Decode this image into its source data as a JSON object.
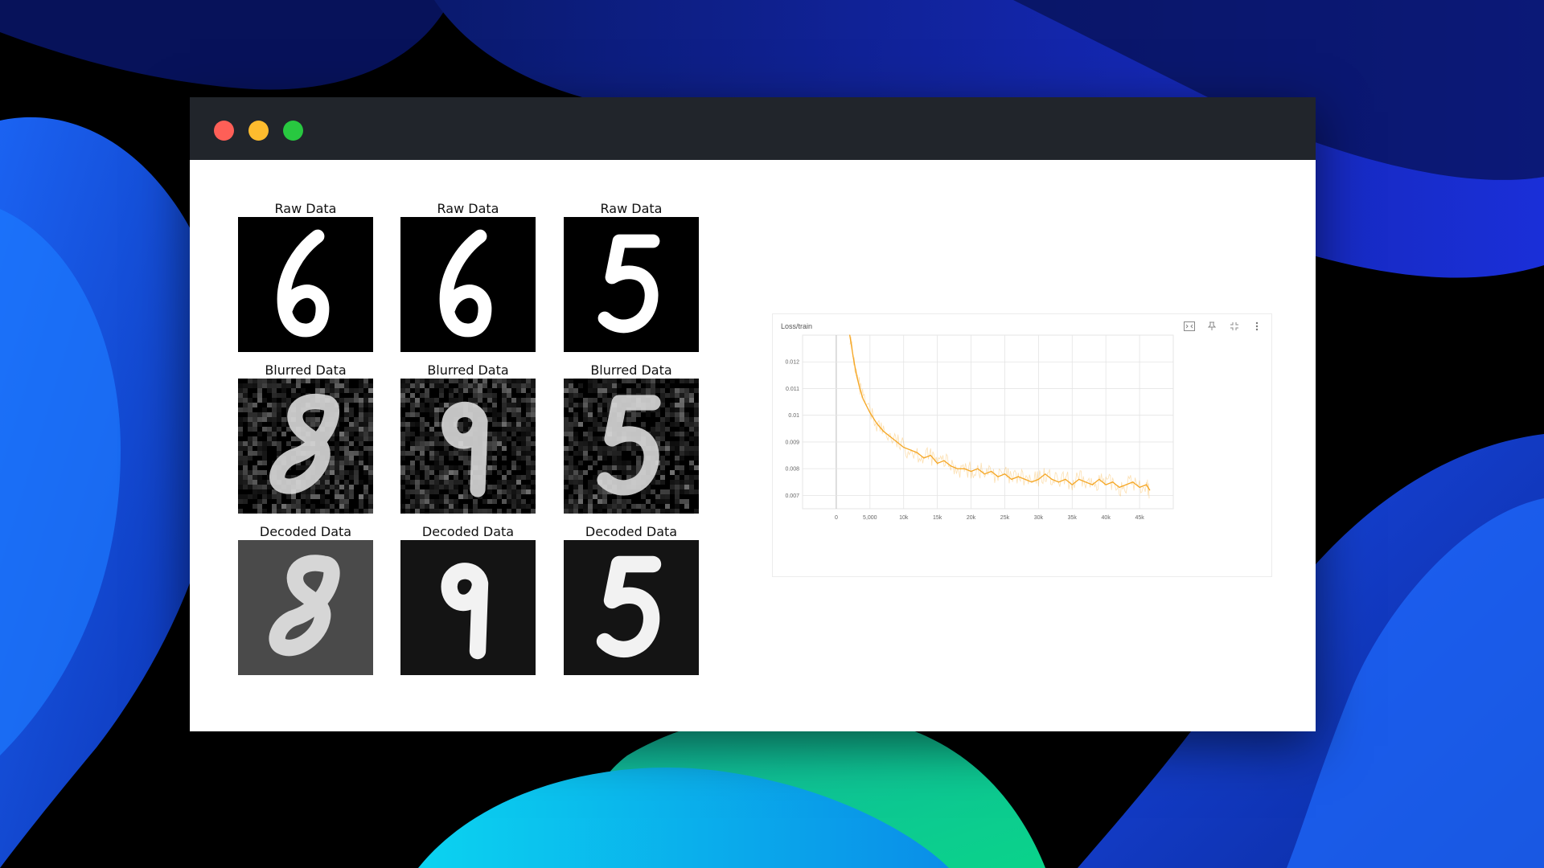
{
  "window": {
    "controls": {
      "close_color": "#fe5f57",
      "minimize_color": "#febc2e",
      "maximize_color": "#28c840"
    }
  },
  "grid": {
    "rows": [
      {
        "title": "Raw Data",
        "images": [
          {
            "digit": "6",
            "style": "raw"
          },
          {
            "digit": "6",
            "style": "raw"
          },
          {
            "digit": "5",
            "style": "raw"
          }
        ]
      },
      {
        "title": "Blurred Data",
        "images": [
          {
            "digit": "8",
            "style": "noisy"
          },
          {
            "digit": "9",
            "style": "noisy"
          },
          {
            "digit": "5",
            "style": "noisy"
          }
        ]
      },
      {
        "title": "Decoded Data",
        "images": [
          {
            "digit": "8",
            "style": "decoded"
          },
          {
            "digit": "9",
            "style": "decoded"
          },
          {
            "digit": "5",
            "style": "decoded"
          }
        ]
      }
    ],
    "titles": [
      [
        "Raw Data",
        "Raw Data",
        "Raw Data"
      ],
      [
        "Blurred Data",
        "Blurred Data",
        "Blurred Data"
      ],
      [
        "Decoded Data",
        "Decoded Data",
        "Decoded Data"
      ]
    ]
  },
  "tensorboard": {
    "card_title": "Loss/train",
    "icons": [
      "fit-domain-icon",
      "pin-icon",
      "expand-icon",
      "more-vert-icon"
    ]
  },
  "chart_data": {
    "type": "line",
    "title": "Loss/train",
    "xlabel": "",
    "ylabel": "",
    "x_ticks": [
      "0",
      "5,000",
      "10k",
      "15k",
      "20k",
      "25k",
      "30k",
      "35k",
      "40k",
      "45k"
    ],
    "x_tick_values": [
      0,
      5000,
      10000,
      15000,
      20000,
      25000,
      30000,
      35000,
      40000,
      45000
    ],
    "y_ticks": [
      "0.012",
      "0.011",
      "0.01",
      "0.009",
      "0.008",
      "0.007"
    ],
    "y_tick_values": [
      0.012,
      0.011,
      0.01,
      0.009,
      0.008,
      0.007
    ],
    "xlim": [
      -5000,
      50000
    ],
    "ylim": [
      0.0065,
      0.013
    ],
    "grid": true,
    "color": "#f5a623",
    "series": [
      {
        "x": [
          2000,
          2500,
          3000,
          3500,
          4000,
          5000,
          6000,
          7000,
          8000,
          9000,
          10000,
          11000,
          12000,
          13000,
          14000,
          15000,
          16000,
          17000,
          18000,
          19000,
          20000,
          21000,
          22000,
          23000,
          24000,
          25000,
          26000,
          27000,
          28000,
          29000,
          30000,
          31000,
          32000,
          33000,
          34000,
          35000,
          36000,
          37000,
          38000,
          39000,
          40000,
          41000,
          42000,
          43000,
          44000,
          45000,
          46000,
          46500
        ],
        "y": [
          0.013,
          0.0122,
          0.0115,
          0.011,
          0.0106,
          0.0101,
          0.0097,
          0.0094,
          0.0092,
          0.009,
          0.0088,
          0.0087,
          0.0086,
          0.0084,
          0.0085,
          0.0082,
          0.0083,
          0.0081,
          0.008,
          0.008,
          0.0079,
          0.008,
          0.0078,
          0.0079,
          0.0077,
          0.0078,
          0.0076,
          0.0077,
          0.0076,
          0.0075,
          0.0076,
          0.0078,
          0.0076,
          0.0075,
          0.0076,
          0.0074,
          0.0076,
          0.0075,
          0.0074,
          0.0076,
          0.0074,
          0.0075,
          0.0073,
          0.0074,
          0.0075,
          0.0073,
          0.0074,
          0.0072
        ]
      }
    ]
  }
}
